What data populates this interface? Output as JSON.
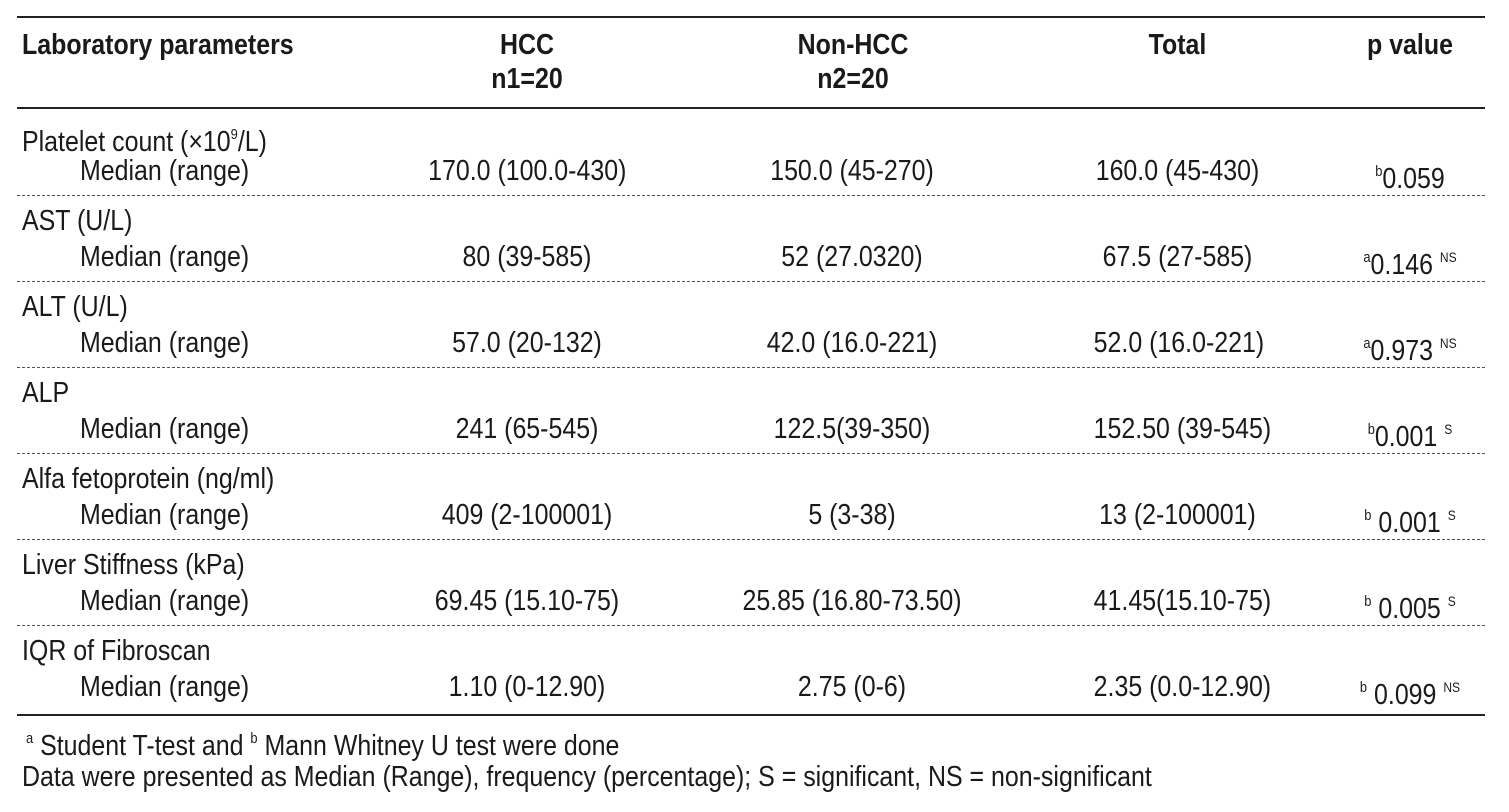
{
  "headers": {
    "param": "Laboratory parameters",
    "hcc_line1": "HCC",
    "hcc_line2": "n1=20",
    "non_hcc_line1": "Non-HCC",
    "non_hcc_line2": "n2=20",
    "total": "Total",
    "p_value": "p value"
  },
  "rows": [
    {
      "title": "Platelet count (×10",
      "title_sup": "9",
      "title_tail": "/L)",
      "sublabel": "Median (range)",
      "hcc": "170.0 (100.0-430)",
      "non_hcc": "150.0 (45-270)",
      "total": "160.0 (45-430)",
      "p_prefix": "b",
      "p": "0.059",
      "p_suffix": ""
    },
    {
      "title": "AST (U/L)",
      "sublabel": "Median (range)",
      "hcc": "80 (39-585)",
      "non_hcc": "52 (27.0320)",
      "total": "67.5 (27-585)",
      "p_prefix": "a",
      "p": "0.146",
      "p_suffix": "NS"
    },
    {
      "title": "ALT (U/L)",
      "sublabel": "Median (range)",
      "hcc": "57.0 (20-132)",
      "non_hcc": "42.0 (16.0-221)",
      "total": "52.0 (16.0-221)",
      "p_prefix": "a",
      "p": "0.973",
      "p_suffix": "NS"
    },
    {
      "title": "ALP",
      "sublabel": "Median (range)",
      "hcc": "241 (65-545)",
      "non_hcc": "122.5(39-350)",
      "total": "152.50 (39-545)",
      "p_prefix": "b",
      "p": "0.001",
      "p_suffix": "S"
    },
    {
      "title": "Alfa fetoprotein (ng/ml)",
      "sublabel": "Median (range)",
      "hcc": "409 (2-100001)",
      "non_hcc": "5 (3-38)",
      "total": "13 (2-100001)",
      "p_prefix": "b",
      "p": "0.001",
      "p_suffix": "S"
    },
    {
      "title": "Liver Stiffness (kPa)",
      "sublabel": "Median (range)",
      "hcc": "69.45 (15.10-75)",
      "non_hcc": "25.85 (16.80-73.50)",
      "total": "41.45(15.10-75)",
      "p_prefix": "b",
      "p": "0.005",
      "p_suffix": "S"
    },
    {
      "title": "IQR of Fibroscan",
      "sublabel": "Median (range)",
      "hcc": "1.10 (0-12.90)",
      "non_hcc": "2.75 (0-6)",
      "total": "2.35 (0.0-12.90)",
      "p_prefix": "b",
      "p": "0.099",
      "p_suffix": "NS"
    }
  ],
  "footnotes": {
    "a_mark": "a",
    "a_text": " Student T-test and ",
    "b_mark": "b",
    "b_text": " Mann Whitney U test were done",
    "line2": "Data were presented as Median (Range), frequency (percentage); S = significant, NS = non-significant"
  }
}
